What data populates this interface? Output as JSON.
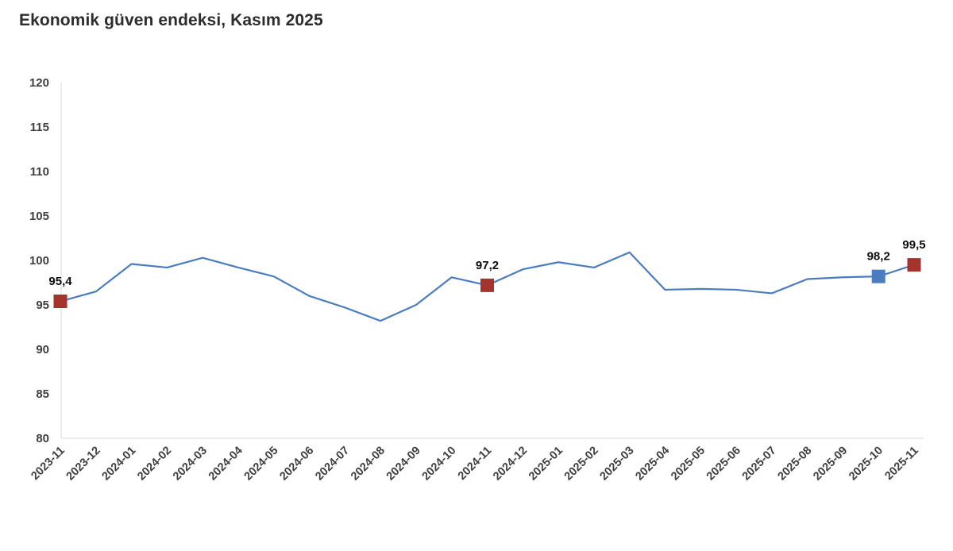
{
  "page": {
    "title": "Ekonomik güven endeksi, Kasım 2025"
  },
  "chart_data": {
    "type": "line",
    "title": "Ekonomik güven endeksi, Kasım 2025",
    "xlabel": "",
    "ylabel": "",
    "ylim": [
      80,
      120
    ],
    "yticks": [
      80,
      85,
      90,
      95,
      100,
      105,
      110,
      115,
      120
    ],
    "grid": false,
    "legend_position": "none",
    "line_color": "#4a7cc0",
    "axis_color": "#d9d9d9",
    "tick_label_color": "#3f3f3f",
    "categories": [
      "2023-11",
      "2023-12",
      "2024-01",
      "2024-02",
      "2024-03",
      "2024-04",
      "2024-05",
      "2024-06",
      "2024-07",
      "2024-08",
      "2024-09",
      "2024-10",
      "2024-11",
      "2024-12",
      "2025-01",
      "2025-02",
      "2025-03",
      "2025-04",
      "2025-05",
      "2025-06",
      "2025-07",
      "2025-08",
      "2025-09",
      "2025-10",
      "2025-11"
    ],
    "values": [
      95.4,
      96.5,
      99.6,
      99.2,
      100.3,
      99.2,
      98.2,
      96.0,
      94.7,
      93.2,
      95.0,
      98.1,
      97.2,
      99.0,
      99.8,
      99.2,
      100.9,
      96.7,
      96.8,
      96.7,
      96.3,
      97.9,
      98.1,
      98.2,
      99.5
    ],
    "marked_points": [
      {
        "x": "2023-11",
        "value": 95.4,
        "label": "95,4",
        "marker_color": "#a4342c"
      },
      {
        "x": "2024-11",
        "value": 97.2,
        "label": "97,2",
        "marker_color": "#a4342c"
      },
      {
        "x": "2025-10",
        "value": 98.2,
        "label": "98,2",
        "marker_color": "#4a7cc0"
      },
      {
        "x": "2025-11",
        "value": 99.5,
        "label": "99,5",
        "marker_color": "#a4342c"
      }
    ]
  }
}
